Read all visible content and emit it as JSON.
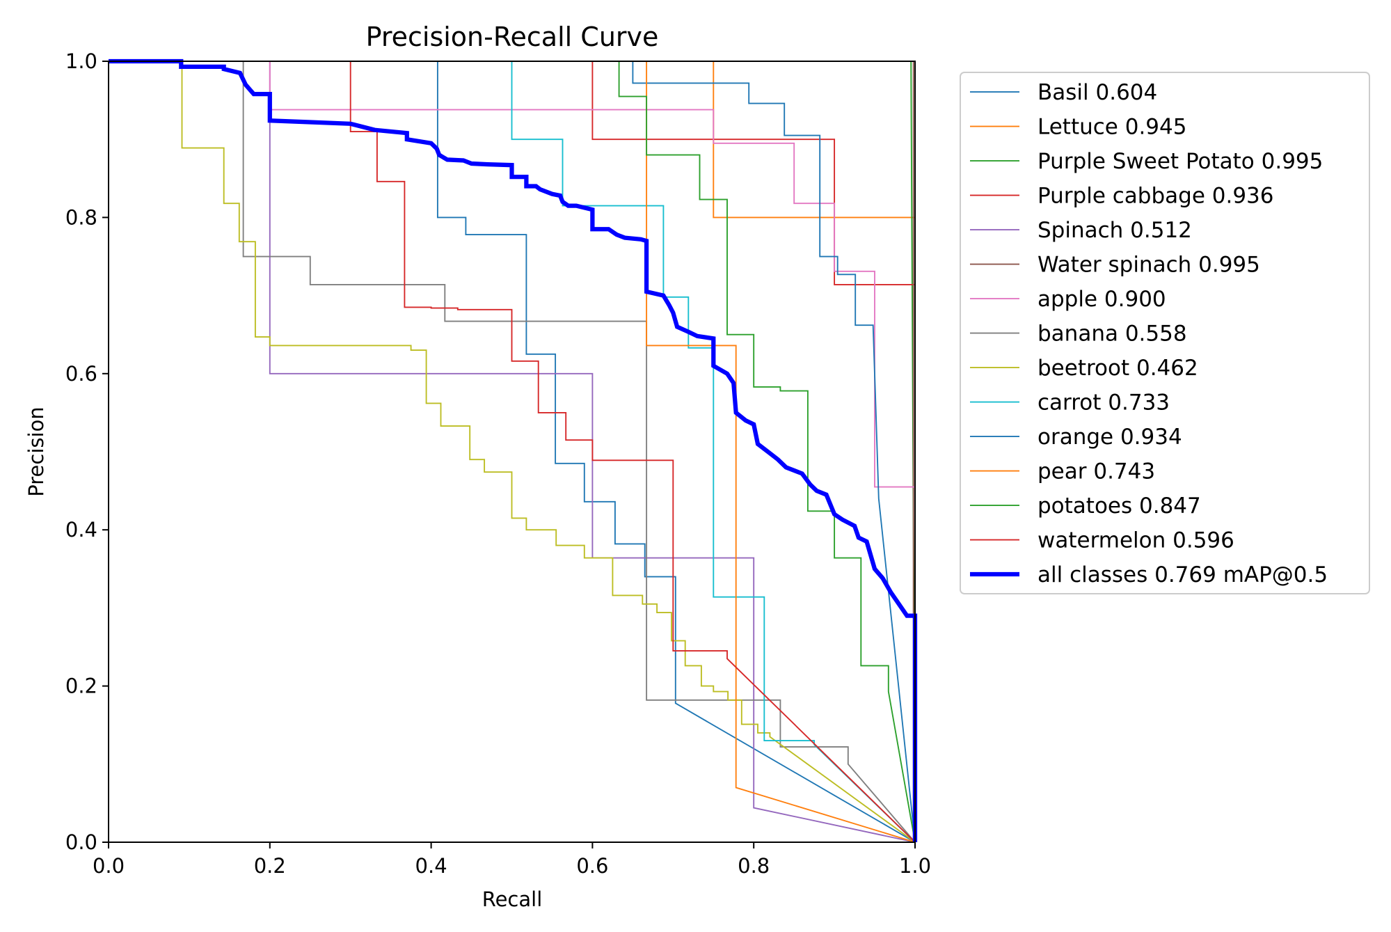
{
  "chart_data": {
    "type": "line",
    "title": "Precision-Recall Curve",
    "xlabel": "Recall",
    "ylabel": "Precision",
    "xlim": [
      0,
      1
    ],
    "ylim": [
      0,
      1
    ],
    "grid": false,
    "legend_position": "outside-top-right",
    "x_ticks": [
      0.0,
      0.2,
      0.4,
      0.6,
      0.8,
      1.0
    ],
    "y_ticks": [
      0.0,
      0.2,
      0.4,
      0.6,
      0.8,
      1.0
    ],
    "x_tick_labels": [
      "0.0",
      "0.2",
      "0.4",
      "0.6",
      "0.8",
      "1.0"
    ],
    "y_tick_labels": [
      "0.0",
      "0.2",
      "0.4",
      "0.6",
      "0.8",
      "1.0"
    ],
    "series": [
      {
        "name": "Basil 0.604",
        "color": "#1f77b4",
        "width": 1.5,
        "points": [
          [
            0,
            1
          ],
          [
            0.408,
            1
          ],
          [
            0.408,
            0.8
          ],
          [
            0.443,
            0.8
          ],
          [
            0.443,
            0.778
          ],
          [
            0.518,
            0.778
          ],
          [
            0.518,
            0.625
          ],
          [
            0.554,
            0.625
          ],
          [
            0.554,
            0.485
          ],
          [
            0.59,
            0.485
          ],
          [
            0.59,
            0.436
          ],
          [
            0.628,
            0.436
          ],
          [
            0.628,
            0.382
          ],
          [
            0.665,
            0.382
          ],
          [
            0.665,
            0.34
          ],
          [
            0.703,
            0.34
          ],
          [
            0.703,
            0.178
          ],
          [
            1.0,
            0.0
          ]
        ]
      },
      {
        "name": "Lettuce 0.945",
        "color": "#ff7f0e",
        "width": 1.5,
        "points": [
          [
            0,
            1
          ],
          [
            0.75,
            1
          ],
          [
            0.75,
            0.8
          ],
          [
            1.0,
            0.8
          ],
          [
            1.0,
            0.0
          ]
        ]
      },
      {
        "name": "Purple Sweet Potato 0.995",
        "color": "#2ca02c",
        "width": 1.5,
        "points": [
          [
            0,
            1
          ],
          [
            0.995,
            1
          ],
          [
            1.0,
            0.0
          ]
        ]
      },
      {
        "name": "Purple cabbage 0.936",
        "color": "#d62728",
        "width": 1.5,
        "points": [
          [
            0,
            1
          ],
          [
            0.6,
            1
          ],
          [
            0.6,
            0.9
          ],
          [
            0.9,
            0.9
          ],
          [
            0.9,
            0.714
          ],
          [
            1.0,
            0.714
          ],
          [
            1.0,
            0.0
          ]
        ]
      },
      {
        "name": "Spinach 0.512",
        "color": "#9467bd",
        "width": 1.5,
        "points": [
          [
            0,
            1
          ],
          [
            0.2,
            1
          ],
          [
            0.2,
            0.6
          ],
          [
            0.6,
            0.6
          ],
          [
            0.6,
            0.364
          ],
          [
            0.8,
            0.364
          ],
          [
            0.8,
            0.044
          ],
          [
            1.0,
            0.0
          ]
        ]
      },
      {
        "name": "Water spinach 0.995",
        "color": "#8c564b",
        "width": 1.5,
        "points": [
          [
            0,
            1
          ],
          [
            0.998,
            1
          ],
          [
            0.998,
            0.0
          ]
        ]
      },
      {
        "name": "apple 0.900",
        "color": "#e377c2",
        "width": 1.5,
        "points": [
          [
            0,
            1
          ],
          [
            0.2,
            1
          ],
          [
            0.2,
            0.938
          ],
          [
            0.75,
            0.938
          ],
          [
            0.75,
            0.895
          ],
          [
            0.85,
            0.895
          ],
          [
            0.85,
            0.818
          ],
          [
            0.9,
            0.818
          ],
          [
            0.9,
            0.731
          ],
          [
            0.95,
            0.731
          ],
          [
            0.95,
            0.455
          ],
          [
            1.0,
            0.455
          ],
          [
            1.0,
            0.0
          ]
        ]
      },
      {
        "name": "banana 0.558",
        "color": "#7f7f7f",
        "width": 1.5,
        "points": [
          [
            0,
            1
          ],
          [
            0.167,
            1
          ],
          [
            0.167,
            0.75
          ],
          [
            0.25,
            0.75
          ],
          [
            0.25,
            0.714
          ],
          [
            0.417,
            0.714
          ],
          [
            0.417,
            0.667
          ],
          [
            0.667,
            0.667
          ],
          [
            0.667,
            0.182
          ],
          [
            0.833,
            0.182
          ],
          [
            0.833,
            0.122
          ],
          [
            0.917,
            0.122
          ],
          [
            0.917,
            0.1
          ],
          [
            1.0,
            0.0
          ]
        ]
      },
      {
        "name": "beetroot 0.462",
        "color": "#bcbd22",
        "width": 1.5,
        "points": [
          [
            0,
            1
          ],
          [
            0.091,
            1
          ],
          [
            0.091,
            0.889
          ],
          [
            0.143,
            0.889
          ],
          [
            0.143,
            0.818
          ],
          [
            0.162,
            0.818
          ],
          [
            0.162,
            0.769
          ],
          [
            0.182,
            0.769
          ],
          [
            0.182,
            0.647
          ],
          [
            0.2,
            0.647
          ],
          [
            0.2,
            0.636
          ],
          [
            0.375,
            0.636
          ],
          [
            0.375,
            0.63
          ],
          [
            0.394,
            0.63
          ],
          [
            0.394,
            0.562
          ],
          [
            0.412,
            0.562
          ],
          [
            0.412,
            0.533
          ],
          [
            0.448,
            0.533
          ],
          [
            0.448,
            0.49
          ],
          [
            0.466,
            0.49
          ],
          [
            0.466,
            0.474
          ],
          [
            0.5,
            0.474
          ],
          [
            0.5,
            0.415
          ],
          [
            0.518,
            0.415
          ],
          [
            0.518,
            0.4
          ],
          [
            0.555,
            0.4
          ],
          [
            0.555,
            0.38
          ],
          [
            0.59,
            0.38
          ],
          [
            0.59,
            0.364
          ],
          [
            0.625,
            0.364
          ],
          [
            0.625,
            0.316
          ],
          [
            0.662,
            0.316
          ],
          [
            0.662,
            0.305
          ],
          [
            0.68,
            0.305
          ],
          [
            0.68,
            0.294
          ],
          [
            0.698,
            0.294
          ],
          [
            0.698,
            0.258
          ],
          [
            0.715,
            0.258
          ],
          [
            0.715,
            0.226
          ],
          [
            0.735,
            0.226
          ],
          [
            0.735,
            0.2
          ],
          [
            0.75,
            0.2
          ],
          [
            0.75,
            0.193
          ],
          [
            0.768,
            0.193
          ],
          [
            0.768,
            0.182
          ],
          [
            0.785,
            0.182
          ],
          [
            0.785,
            0.151
          ],
          [
            0.805,
            0.151
          ],
          [
            0.805,
            0.14
          ],
          [
            0.82,
            0.14
          ],
          [
            0.82,
            0.135
          ],
          [
            1.0,
            0.0
          ]
        ]
      },
      {
        "name": "carrot 0.733",
        "color": "#17becf",
        "width": 1.5,
        "points": [
          [
            0,
            1
          ],
          [
            0.5,
            1
          ],
          [
            0.5,
            0.9
          ],
          [
            0.563,
            0.9
          ],
          [
            0.563,
            0.815
          ],
          [
            0.688,
            0.815
          ],
          [
            0.688,
            0.698
          ],
          [
            0.719,
            0.698
          ],
          [
            0.719,
            0.633
          ],
          [
            0.75,
            0.633
          ],
          [
            0.75,
            0.314
          ],
          [
            0.813,
            0.314
          ],
          [
            0.813,
            0.13
          ],
          [
            0.875,
            0.13
          ],
          [
            0.875,
            0.125
          ],
          [
            1.0,
            0.0
          ]
        ]
      },
      {
        "name": "orange 0.934",
        "color": "#1f77b4",
        "width": 1.5,
        "points": [
          [
            0,
            1
          ],
          [
            0.65,
            1
          ],
          [
            0.65,
            0.972
          ],
          [
            0.794,
            0.972
          ],
          [
            0.794,
            0.946
          ],
          [
            0.838,
            0.946
          ],
          [
            0.838,
            0.905
          ],
          [
            0.882,
            0.905
          ],
          [
            0.882,
            0.75
          ],
          [
            0.904,
            0.75
          ],
          [
            0.904,
            0.727
          ],
          [
            0.926,
            0.727
          ],
          [
            0.926,
            0.662
          ],
          [
            0.948,
            0.662
          ],
          [
            0.955,
            0.44
          ],
          [
            1.0,
            0.0
          ]
        ]
      },
      {
        "name": "pear 0.743",
        "color": "#ff7f0e",
        "width": 1.5,
        "points": [
          [
            0,
            1
          ],
          [
            0.667,
            1
          ],
          [
            0.667,
            0.636
          ],
          [
            0.778,
            0.636
          ],
          [
            0.778,
            0.07
          ],
          [
            1.0,
            0.0
          ]
        ]
      },
      {
        "name": "potatoes 0.847",
        "color": "#2ca02c",
        "width": 1.5,
        "points": [
          [
            0,
            1
          ],
          [
            0.633,
            1
          ],
          [
            0.633,
            0.955
          ],
          [
            0.667,
            0.955
          ],
          [
            0.667,
            0.88
          ],
          [
            0.733,
            0.88
          ],
          [
            0.733,
            0.823
          ],
          [
            0.767,
            0.823
          ],
          [
            0.767,
            0.65
          ],
          [
            0.8,
            0.65
          ],
          [
            0.8,
            0.583
          ],
          [
            0.833,
            0.583
          ],
          [
            0.833,
            0.578
          ],
          [
            0.867,
            0.578
          ],
          [
            0.867,
            0.424
          ],
          [
            0.9,
            0.424
          ],
          [
            0.9,
            0.364
          ],
          [
            0.933,
            0.364
          ],
          [
            0.933,
            0.226
          ],
          [
            0.967,
            0.226
          ],
          [
            0.967,
            0.193
          ],
          [
            1.0,
            0.0
          ]
        ]
      },
      {
        "name": "watermelon 0.596",
        "color": "#d62728",
        "width": 1.5,
        "points": [
          [
            0,
            1
          ],
          [
            0.3,
            1
          ],
          [
            0.3,
            0.91
          ],
          [
            0.333,
            0.91
          ],
          [
            0.333,
            0.846
          ],
          [
            0.367,
            0.846
          ],
          [
            0.367,
            0.685
          ],
          [
            0.4,
            0.685
          ],
          [
            0.4,
            0.684
          ],
          [
            0.433,
            0.684
          ],
          [
            0.433,
            0.682
          ],
          [
            0.5,
            0.682
          ],
          [
            0.5,
            0.616
          ],
          [
            0.533,
            0.616
          ],
          [
            0.533,
            0.55
          ],
          [
            0.567,
            0.55
          ],
          [
            0.567,
            0.515
          ],
          [
            0.6,
            0.515
          ],
          [
            0.6,
            0.489
          ],
          [
            0.7,
            0.489
          ],
          [
            0.7,
            0.245
          ],
          [
            0.767,
            0.245
          ],
          [
            0.767,
            0.235
          ],
          [
            1.0,
            0.0
          ]
        ]
      },
      {
        "name": "all classes 0.769 mAP@0.5",
        "color": "#0000ff",
        "width": 5,
        "points": [
          [
            0,
            1
          ],
          [
            0.09,
            1
          ],
          [
            0.09,
            0.993
          ],
          [
            0.143,
            0.993
          ],
          [
            0.143,
            0.99
          ],
          [
            0.163,
            0.985
          ],
          [
            0.17,
            0.97
          ],
          [
            0.18,
            0.958
          ],
          [
            0.2,
            0.958
          ],
          [
            0.2,
            0.924
          ],
          [
            0.25,
            0.922
          ],
          [
            0.3,
            0.92
          ],
          [
            0.33,
            0.912
          ],
          [
            0.37,
            0.908
          ],
          [
            0.37,
            0.9
          ],
          [
            0.4,
            0.895
          ],
          [
            0.407,
            0.888
          ],
          [
            0.41,
            0.88
          ],
          [
            0.42,
            0.874
          ],
          [
            0.44,
            0.873
          ],
          [
            0.45,
            0.869
          ],
          [
            0.47,
            0.868
          ],
          [
            0.5,
            0.867
          ],
          [
            0.5,
            0.852
          ],
          [
            0.518,
            0.852
          ],
          [
            0.518,
            0.84
          ],
          [
            0.53,
            0.84
          ],
          [
            0.535,
            0.836
          ],
          [
            0.55,
            0.83
          ],
          [
            0.56,
            0.828
          ],
          [
            0.563,
            0.82
          ],
          [
            0.57,
            0.815
          ],
          [
            0.58,
            0.815
          ],
          [
            0.6,
            0.81
          ],
          [
            0.6,
            0.785
          ],
          [
            0.62,
            0.785
          ],
          [
            0.63,
            0.778
          ],
          [
            0.64,
            0.774
          ],
          [
            0.66,
            0.772
          ],
          [
            0.667,
            0.77
          ],
          [
            0.667,
            0.705
          ],
          [
            0.688,
            0.7
          ],
          [
            0.695,
            0.688
          ],
          [
            0.7,
            0.678
          ],
          [
            0.705,
            0.66
          ],
          [
            0.72,
            0.653
          ],
          [
            0.73,
            0.648
          ],
          [
            0.75,
            0.645
          ],
          [
            0.75,
            0.61
          ],
          [
            0.767,
            0.6
          ],
          [
            0.775,
            0.588
          ],
          [
            0.778,
            0.55
          ],
          [
            0.79,
            0.54
          ],
          [
            0.8,
            0.535
          ],
          [
            0.805,
            0.51
          ],
          [
            0.82,
            0.498
          ],
          [
            0.83,
            0.49
          ],
          [
            0.84,
            0.48
          ],
          [
            0.86,
            0.472
          ],
          [
            0.87,
            0.458
          ],
          [
            0.878,
            0.45
          ],
          [
            0.89,
            0.445
          ],
          [
            0.9,
            0.42
          ],
          [
            0.91,
            0.413
          ],
          [
            0.925,
            0.405
          ],
          [
            0.93,
            0.39
          ],
          [
            0.94,
            0.385
          ],
          [
            0.95,
            0.35
          ],
          [
            0.96,
            0.338
          ],
          [
            0.97,
            0.32
          ],
          [
            0.99,
            0.29
          ],
          [
            1.0,
            0.29
          ],
          [
            1.0,
            0.0
          ]
        ]
      }
    ]
  }
}
